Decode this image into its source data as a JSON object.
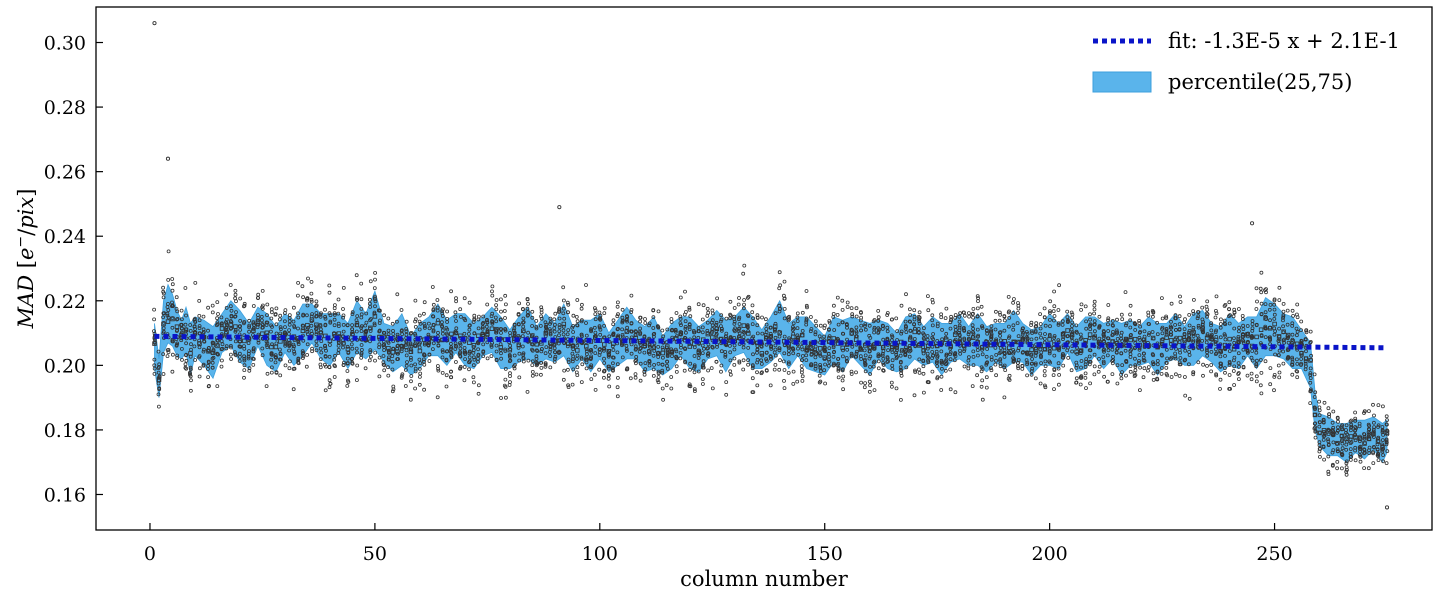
{
  "chart_data": {
    "type": "scatter",
    "title": "",
    "xlabel": "column number",
    "ylabel": {
      "symbol": "MAD",
      "units_open": " [",
      "units_e": "e",
      "units_sup": "−",
      "units_sep": "/",
      "units_pix": "pix",
      "units_close": "]"
    },
    "xlim": [
      -12,
      285
    ],
    "ylim": [
      0.149,
      0.311
    ],
    "xticks": [
      0,
      50,
      100,
      150,
      200,
      250
    ],
    "xtick_labels": [
      "0",
      "50",
      "100",
      "150",
      "200",
      "250"
    ],
    "yticks": [
      0.16,
      0.18,
      0.2,
      0.22,
      0.24,
      0.26,
      0.28,
      0.3
    ],
    "ytick_labels": [
      "0.16",
      "0.18",
      "0.20",
      "0.22",
      "0.24",
      "0.26",
      "0.28",
      "0.30"
    ],
    "grid": false,
    "legend_position": "top-right",
    "colors": {
      "fit": "#0a14c8",
      "band_fill": "#5ab4eb",
      "band_edge": "#3c9fdc",
      "points": "#333333"
    },
    "fit": {
      "label": "fit: -1.3E-5 x + 2.1E-1",
      "slope": -1.3e-05,
      "intercept": 0.209,
      "x_range": [
        1,
        275
      ]
    },
    "band": {
      "label": "percentile(25,75)",
      "x": [
        1,
        2,
        3,
        4,
        5,
        6,
        7,
        8,
        9,
        10,
        12,
        14,
        16,
        18,
        20,
        22,
        24,
        26,
        28,
        30,
        32,
        34,
        36,
        38,
        40,
        42,
        44,
        46,
        48,
        50,
        52,
        54,
        56,
        58,
        60,
        62,
        64,
        66,
        68,
        70,
        72,
        74,
        76,
        78,
        80,
        82,
        84,
        86,
        88,
        90,
        92,
        94,
        96,
        98,
        100,
        102,
        104,
        106,
        108,
        110,
        112,
        114,
        116,
        118,
        120,
        122,
        124,
        126,
        128,
        130,
        132,
        134,
        136,
        138,
        140,
        142,
        144,
        146,
        148,
        150,
        152,
        154,
        156,
        158,
        160,
        162,
        164,
        166,
        168,
        170,
        172,
        174,
        176,
        178,
        180,
        182,
        184,
        186,
        188,
        190,
        192,
        194,
        196,
        198,
        200,
        202,
        204,
        206,
        208,
        210,
        212,
        214,
        216,
        218,
        220,
        222,
        224,
        226,
        228,
        230,
        232,
        234,
        236,
        238,
        240,
        242,
        244,
        246,
        248,
        250,
        252,
        254,
        256,
        258,
        259,
        260,
        262,
        264,
        266,
        268,
        270,
        272,
        274,
        275
      ],
      "median": [
        0.206,
        0.196,
        0.212,
        0.216,
        0.214,
        0.21,
        0.208,
        0.211,
        0.205,
        0.209,
        0.207,
        0.204,
        0.21,
        0.213,
        0.209,
        0.206,
        0.212,
        0.208,
        0.205,
        0.21,
        0.207,
        0.211,
        0.213,
        0.209,
        0.208,
        0.21,
        0.206,
        0.212,
        0.209,
        0.214,
        0.207,
        0.205,
        0.208,
        0.203,
        0.206,
        0.209,
        0.211,
        0.207,
        0.21,
        0.208,
        0.206,
        0.209,
        0.211,
        0.207,
        0.205,
        0.208,
        0.21,
        0.206,
        0.209,
        0.207,
        0.211,
        0.205,
        0.208,
        0.206,
        0.209,
        0.204,
        0.207,
        0.21,
        0.208,
        0.205,
        0.207,
        0.203,
        0.206,
        0.209,
        0.207,
        0.205,
        0.208,
        0.21,
        0.206,
        0.209,
        0.211,
        0.207,
        0.205,
        0.208,
        0.212,
        0.206,
        0.209,
        0.207,
        0.205,
        0.203,
        0.208,
        0.206,
        0.209,
        0.207,
        0.205,
        0.208,
        0.206,
        0.204,
        0.207,
        0.209,
        0.206,
        0.208,
        0.205,
        0.207,
        0.209,
        0.206,
        0.208,
        0.205,
        0.207,
        0.206,
        0.209,
        0.207,
        0.204,
        0.206,
        0.208,
        0.206,
        0.21,
        0.205,
        0.207,
        0.209,
        0.206,
        0.208,
        0.205,
        0.207,
        0.206,
        0.208,
        0.205,
        0.207,
        0.209,
        0.206,
        0.208,
        0.21,
        0.207,
        0.205,
        0.208,
        0.206,
        0.209,
        0.207,
        0.212,
        0.211,
        0.209,
        0.207,
        0.205,
        0.2,
        0.186,
        0.18,
        0.178,
        0.177,
        0.176,
        0.178,
        0.177,
        0.179,
        0.176,
        0.178
      ],
      "half_width": [
        0.007,
        0.006,
        0.008,
        0.009,
        0.008,
        0.007,
        0.006,
        0.007,
        0.008,
        0.006,
        0.007,
        0.008,
        0.006,
        0.007,
        0.008,
        0.007,
        0.006,
        0.008,
        0.007,
        0.006,
        0.007,
        0.008,
        0.006,
        0.007,
        0.008,
        0.006,
        0.007,
        0.008,
        0.007,
        0.009,
        0.006,
        0.007,
        0.008,
        0.006,
        0.007,
        0.006,
        0.008,
        0.007,
        0.006,
        0.008,
        0.007,
        0.006,
        0.007,
        0.008,
        0.006,
        0.007,
        0.008,
        0.006,
        0.007,
        0.006,
        0.008,
        0.007,
        0.006,
        0.008,
        0.007,
        0.006,
        0.007,
        0.008,
        0.006,
        0.007,
        0.008,
        0.006,
        0.007,
        0.006,
        0.008,
        0.007,
        0.006,
        0.007,
        0.008,
        0.006,
        0.007,
        0.008,
        0.006,
        0.007,
        0.008,
        0.007,
        0.006,
        0.008,
        0.007,
        0.006,
        0.007,
        0.008,
        0.006,
        0.007,
        0.008,
        0.006,
        0.007,
        0.006,
        0.008,
        0.007,
        0.006,
        0.007,
        0.008,
        0.006,
        0.007,
        0.006,
        0.008,
        0.007,
        0.006,
        0.007,
        0.008,
        0.006,
        0.007,
        0.006,
        0.008,
        0.007,
        0.006,
        0.007,
        0.008,
        0.006,
        0.007,
        0.006,
        0.008,
        0.007,
        0.006,
        0.007,
        0.008,
        0.006,
        0.007,
        0.006,
        0.008,
        0.007,
        0.006,
        0.007,
        0.008,
        0.007,
        0.006,
        0.008,
        0.009,
        0.008,
        0.007,
        0.008,
        0.006,
        0.007,
        0.006,
        0.005,
        0.006,
        0.005,
        0.006,
        0.005,
        0.006,
        0.005,
        0.006,
        0.005
      ]
    },
    "scatter": {
      "notable_points": [
        {
          "x": 1,
          "y": 0.306
        },
        {
          "x": 4,
          "y": 0.264
        },
        {
          "x": 91,
          "y": 0.249
        },
        {
          "x": 245,
          "y": 0.244
        },
        {
          "x": 275,
          "y": 0.156
        }
      ]
    }
  }
}
